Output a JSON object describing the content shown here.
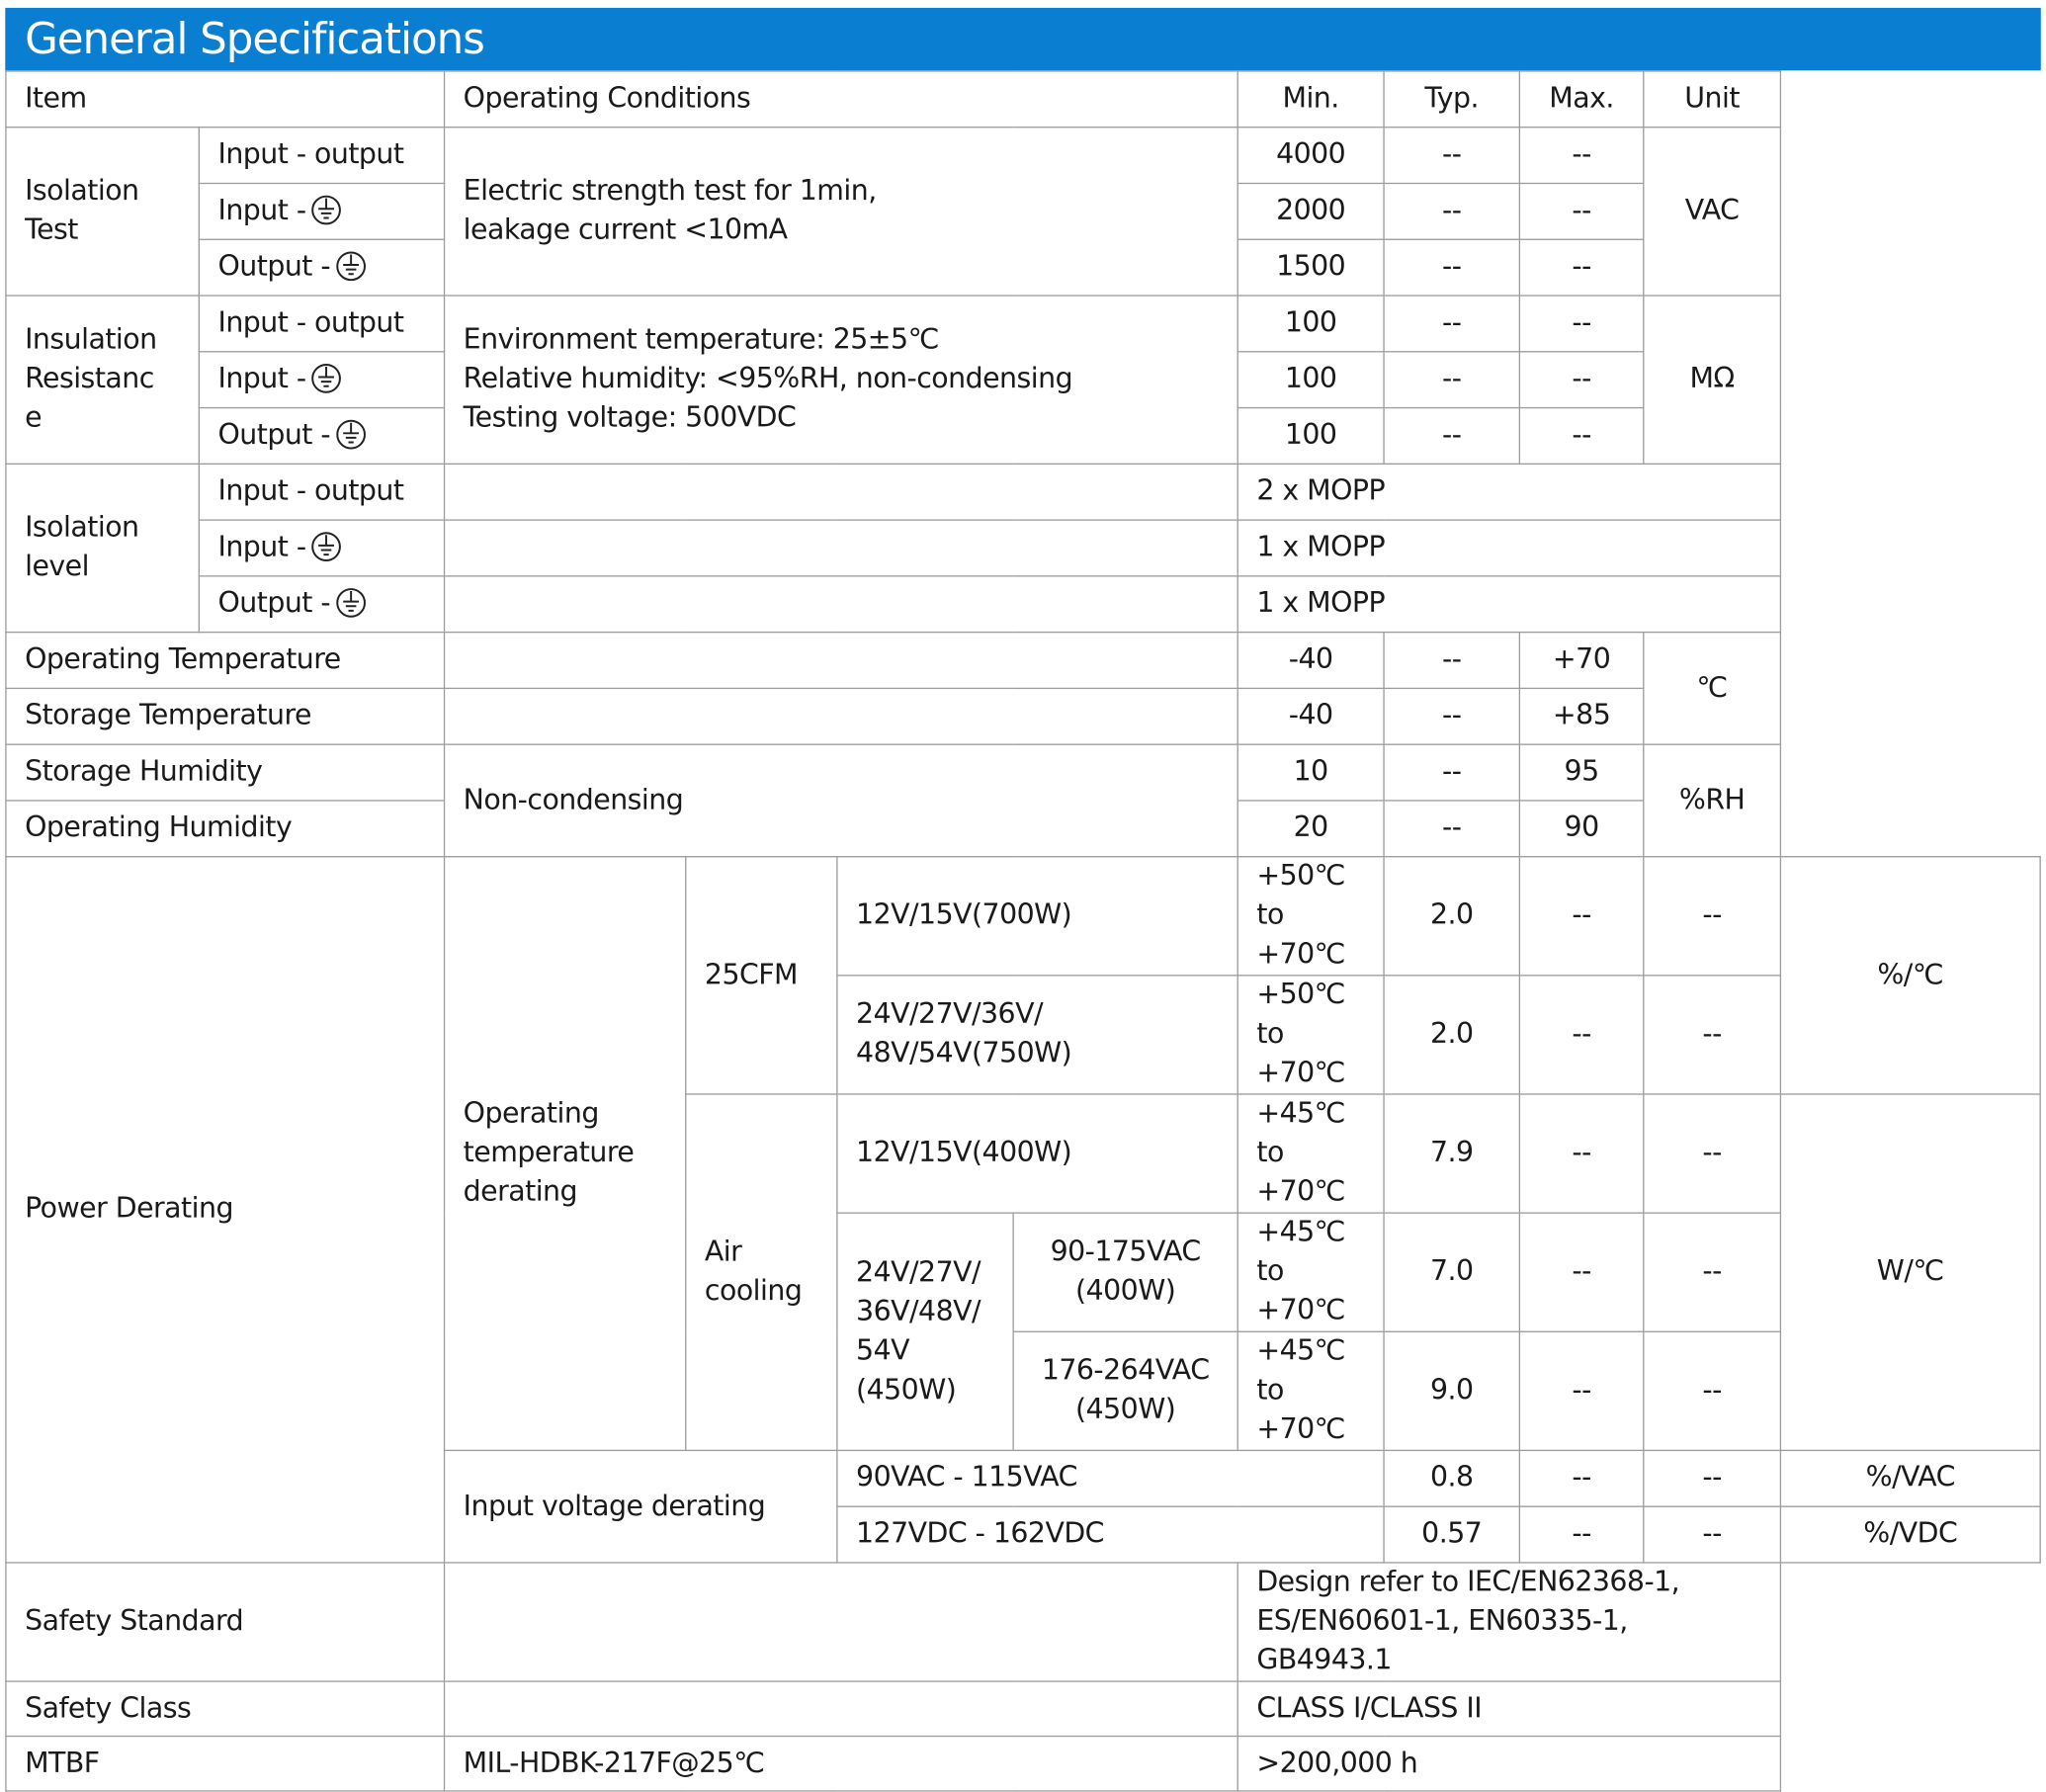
{
  "title": "General Specifications",
  "headers": {
    "item": "Item",
    "conditions": "Operating Conditions",
    "min": "Min.",
    "typ": "Typ.",
    "max": "Max.",
    "unit": "Unit"
  },
  "dash": "--",
  "sub": {
    "io": "Input - output",
    "ig": "Input -",
    "og": "Output -"
  },
  "isolation_test": {
    "item": "Isolation Test",
    "condition_lines": [
      "Electric strength test for 1min,",
      "leakage current <10mA"
    ],
    "min": [
      "4000",
      "2000",
      "1500"
    ],
    "unit": "VAC"
  },
  "insulation": {
    "item_lines": [
      "Insulation",
      "Resistanc",
      "e"
    ],
    "condition_lines": [
      "Environment temperature: 25±5℃",
      "Relative humidity: <95%RH, non-condensing",
      "Testing voltage: 500VDC"
    ],
    "min": [
      "100",
      "100",
      "100"
    ],
    "unit": "MΩ"
  },
  "isolation_level": {
    "item": "Isolation level",
    "values": [
      "2 x MOPP",
      "1 x MOPP",
      "1 x MOPP"
    ]
  },
  "op_temp": {
    "item": "Operating Temperature",
    "min": "-40",
    "max": "+70"
  },
  "storage_temp": {
    "item": "Storage Temperature",
    "min": "-40",
    "max": "+85"
  },
  "temp_unit": "℃",
  "storage_humidity": {
    "item": "Storage Humidity",
    "min": "10",
    "max": "95"
  },
  "op_humidity": {
    "item": "Operating Humidity",
    "min": "20",
    "max": "90"
  },
  "humidity_condition": "Non-condensing",
  "humidity_unit": "%RH",
  "power_derating": {
    "item": "Power Derating",
    "op_temp_label": "Operating temperature derating",
    "cfm_label": "25CFM",
    "air_label": "Air cooling",
    "r1": {
      "model": "12V/15V(700W)",
      "range": "+50℃ to +70℃",
      "min": "2.0"
    },
    "r2": {
      "model_lines": [
        "24V/27V/36V/",
        "48V/54V(750W)"
      ],
      "range": "+50℃ to +70℃",
      "min": "2.0"
    },
    "unit_cfm": "%/℃",
    "r3": {
      "model": "12V/15V(400W)",
      "range": "+45℃ to +70℃",
      "min": "7.9"
    },
    "air_model_lines": [
      "24V/27V/",
      "36V/48V/",
      "54V",
      "(450W)"
    ],
    "r4": {
      "input_lines": [
        "90-175VAC",
        "(400W)"
      ],
      "range": "+45℃ to +70℃",
      "min": "7.0"
    },
    "r5": {
      "input_lines": [
        "176-264VAC",
        "(450W)"
      ],
      "range": "+45℃ to +70℃",
      "min": "9.0"
    },
    "unit_air": "W/℃",
    "input_label": "Input voltage derating",
    "r6": {
      "range": "90VAC - 115VAC",
      "min": "0.8",
      "unit": "%/VAC"
    },
    "r7": {
      "range": "127VDC - 162VDC",
      "min": "0.57",
      "unit": "%/VDC"
    }
  },
  "safety_standard": {
    "item": "Safety Standard",
    "lines": [
      "Design refer to IEC/EN62368-1,",
      "ES/EN60601-1, EN60335-1,",
      "GB4943.1"
    ]
  },
  "safety_class": {
    "item": "Safety Class",
    "value": "CLASS I/CLASS II"
  },
  "mtbf": {
    "item": "MTBF",
    "condition": "MIL-HDBK-217F@25℃",
    "value": ">200,000 h"
  },
  "colors": {
    "banner": "#0a7ed0",
    "border": "#9c9c9c"
  },
  "icons": {
    "ground": "ground-symbol-icon"
  }
}
